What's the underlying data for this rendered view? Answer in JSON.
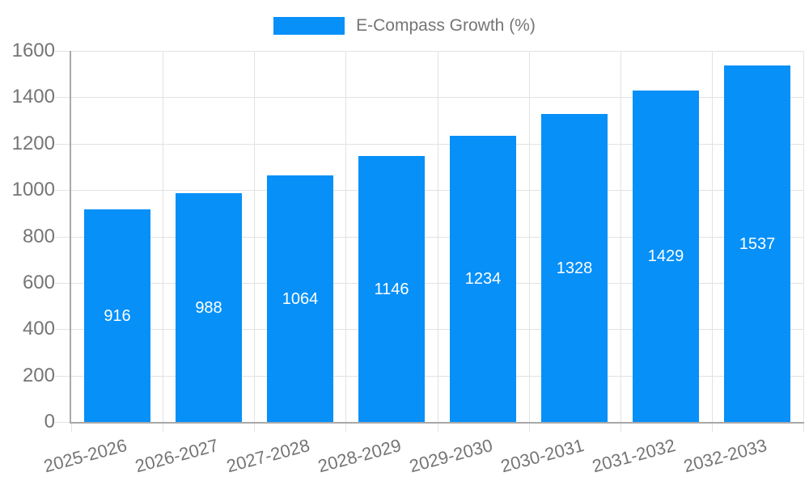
{
  "legend": {
    "label": "E-Compass Growth (%)"
  },
  "chart_data": {
    "type": "bar",
    "title": "E-Compass Growth (%)",
    "categories": [
      "2025-2026",
      "2026-2027",
      "2027-2028",
      "2028-2029",
      "2029-2030",
      "2030-2031",
      "2031-2032",
      "2032-2033"
    ],
    "values": [
      916,
      988,
      1064,
      1146,
      1234,
      1328,
      1429,
      1537
    ],
    "xlabel": "",
    "ylabel": "",
    "ylim": [
      0,
      1600
    ],
    "ytick_step": 200,
    "ytick_labels": [
      "0",
      "200",
      "400",
      "600",
      "800",
      "1000",
      "1200",
      "1400",
      "1600"
    ],
    "grid": true,
    "legend_position": "top-center",
    "bar_labels_inside": true,
    "colors": {
      "bar": "#0690F8",
      "bar_label_text": "#ffffff",
      "axis_text": "#757575",
      "gridline": "#e2e2e2",
      "axis_line": "#a8a8a8",
      "background": "#ffffff"
    }
  }
}
